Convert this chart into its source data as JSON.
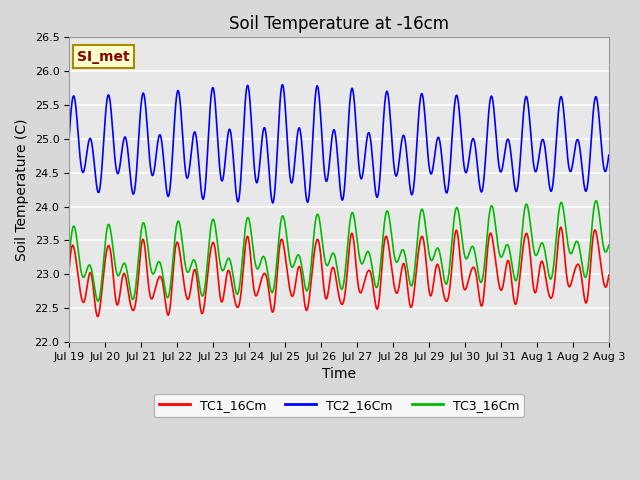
{
  "title": "Soil Temperature at -16cm",
  "xlabel": "Time",
  "ylabel": "Soil Temperature (C)",
  "ylim": [
    22.0,
    26.5
  ],
  "duration_days": 15.5,
  "x_tick_labels": [
    "Jul 19",
    "Jul 20",
    "Jul 21",
    "Jul 22",
    "Jul 23",
    "Jul 24",
    "Jul 25",
    "Jul 26",
    "Jul 27",
    "Jul 28",
    "Jul 29",
    "Jul 30",
    "Jul 31",
    "Aug 1",
    "Aug 2",
    "Aug 3"
  ],
  "legend_labels": [
    "TC1_16Cm",
    "TC2_16Cm",
    "TC3_16Cm"
  ],
  "legend_colors": [
    "#ff0000",
    "#0000ff",
    "#00bb00"
  ],
  "watermark_text": "SI_met",
  "watermark_fg": "#8b0000",
  "watermark_bg": "#ffffcc",
  "watermark_border": "#aa8800",
  "bg_color": "#d8d8d8",
  "plot_bg_color": "#e8e8e8",
  "grid_color": "#ffffff",
  "title_fontsize": 12,
  "axis_label_fontsize": 10,
  "tick_fontsize": 8,
  "legend_fontsize": 9,
  "line_width": 1.2
}
